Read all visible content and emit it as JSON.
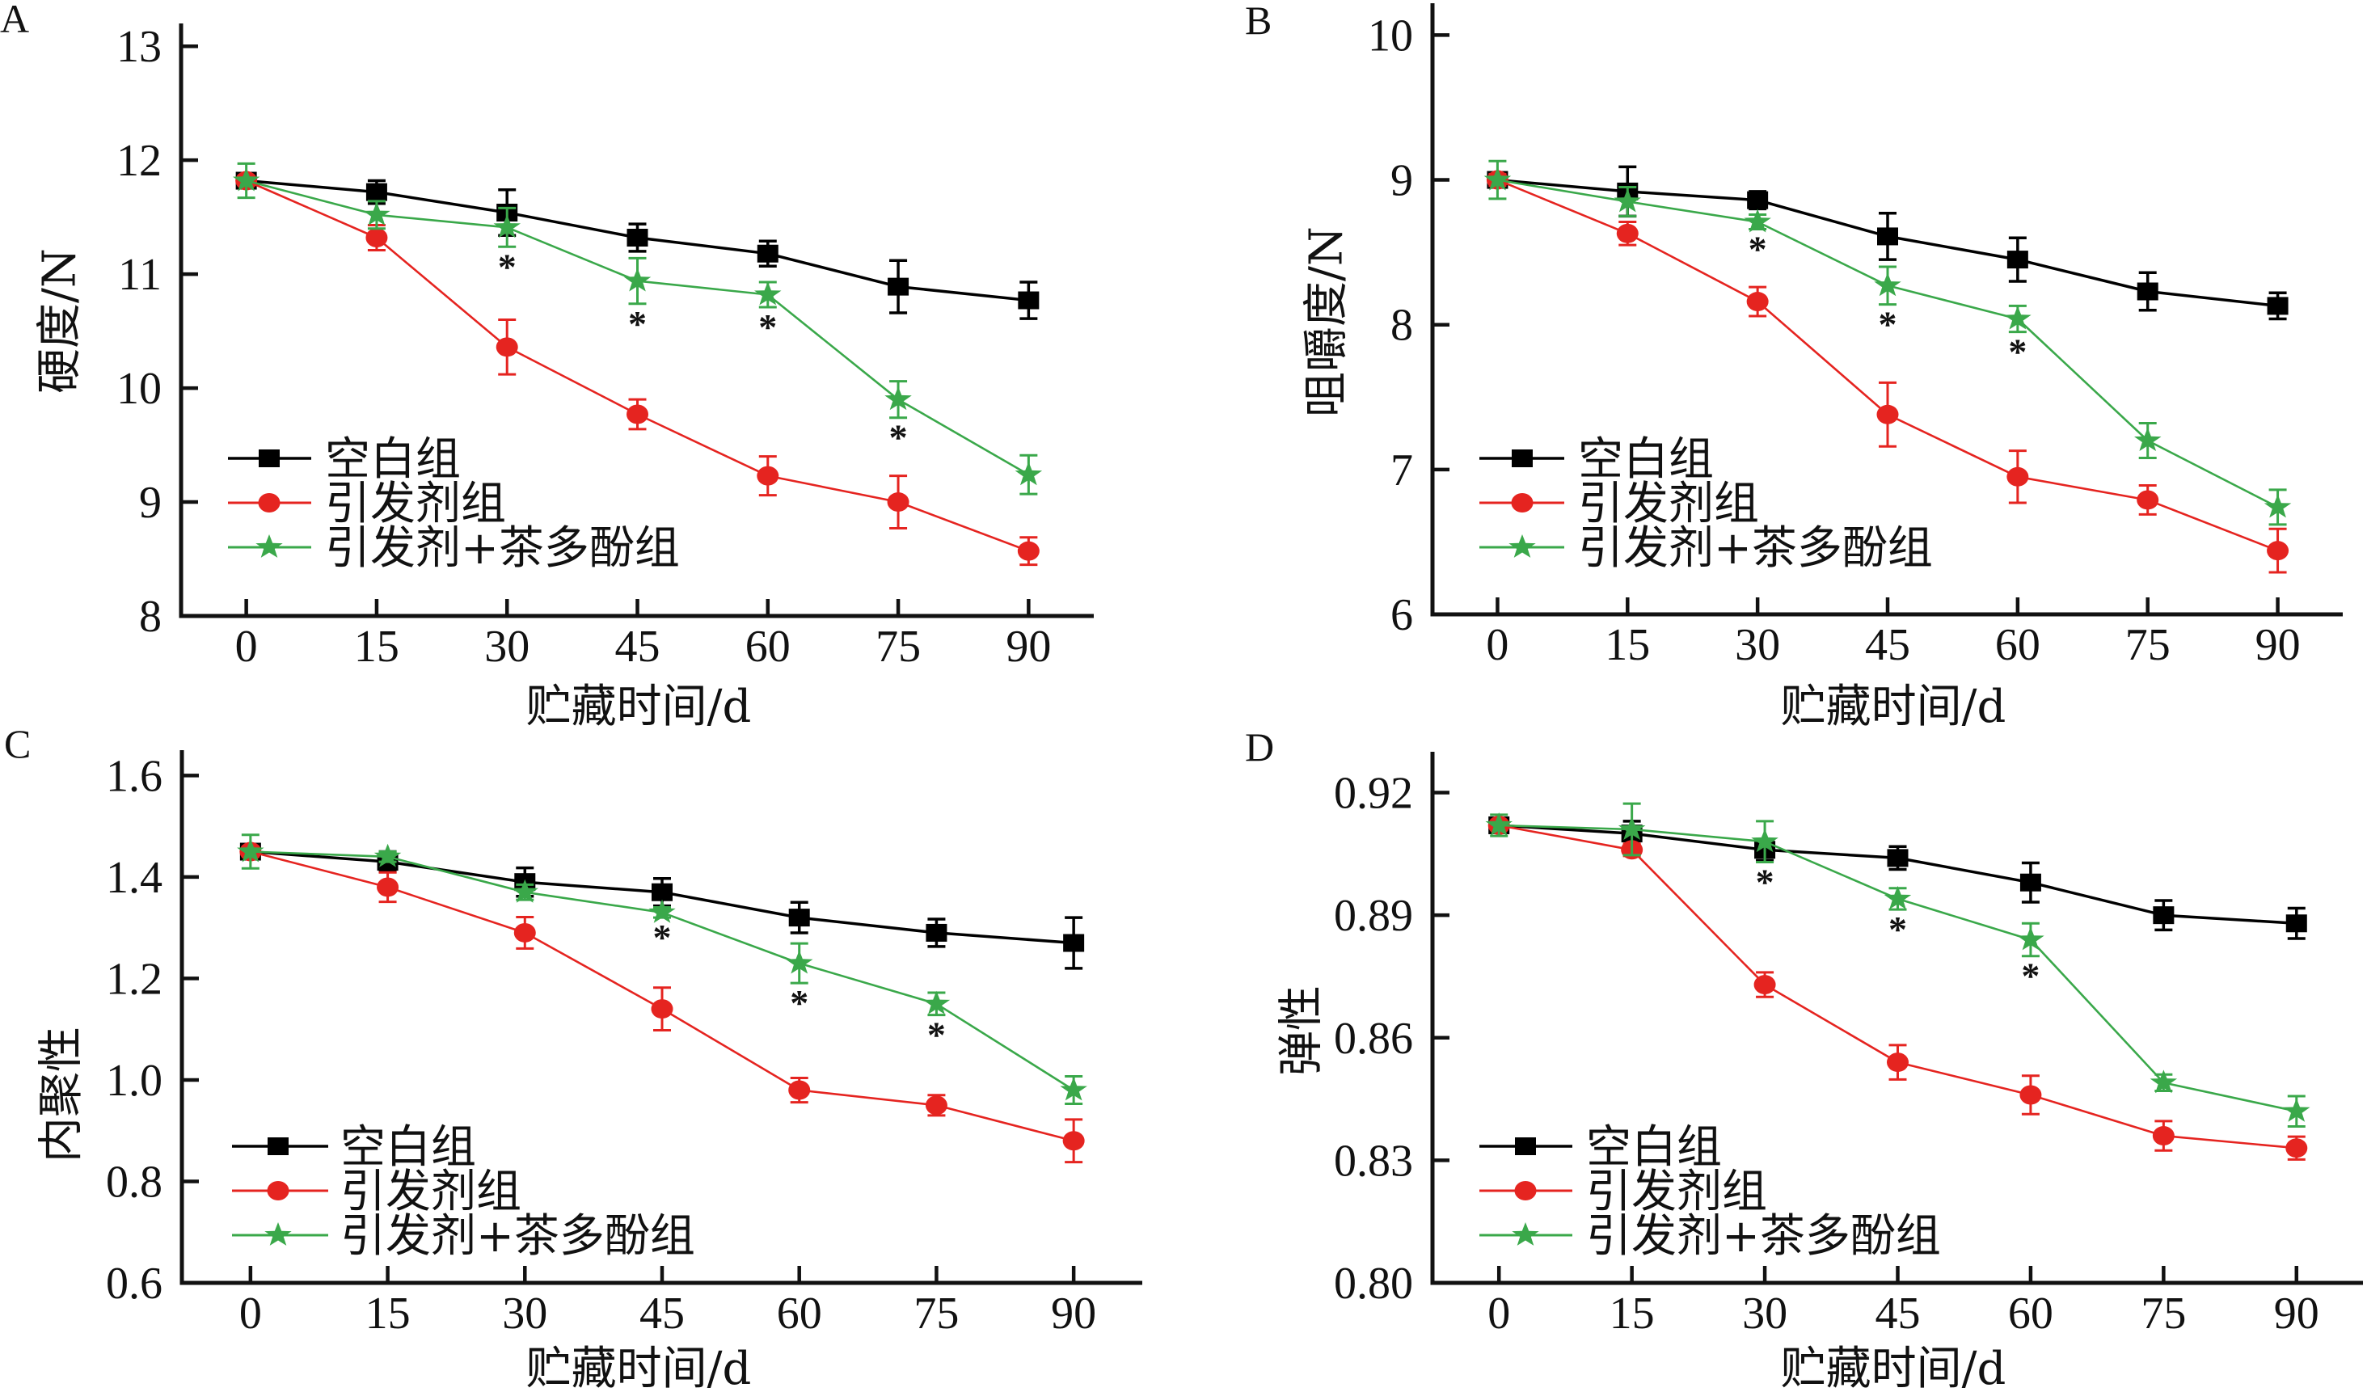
{
  "chart_data": [
    {
      "panel_label": "A",
      "type": "line",
      "title": "",
      "xlabel": "贮藏时间/d",
      "ylabel": "硬度/N",
      "x": [
        0,
        15,
        30,
        45,
        60,
        75,
        90
      ],
      "xticks": [
        "0",
        "15",
        "30",
        "45",
        "60",
        "75",
        "90"
      ],
      "xlim": [
        -7.5,
        97.5
      ],
      "ylim": [
        8,
        13.2
      ],
      "yticks": [
        8,
        9,
        10,
        11,
        12,
        13
      ],
      "ytick_labels": [
        "8",
        "9",
        "10",
        "11",
        "12",
        "13"
      ],
      "grid": false,
      "legend": {
        "placement": "lower-left"
      },
      "series": [
        {
          "name": "空白组",
          "color": "#000000",
          "marker": "square",
          "values": [
            11.82,
            11.72,
            11.54,
            11.32,
            11.18,
            10.89,
            10.77
          ],
          "error": [
            0.04,
            0.1,
            0.2,
            0.12,
            0.11,
            0.23,
            0.16
          ]
        },
        {
          "name": "引发剂组",
          "color": "#e52420",
          "marker": "circle",
          "values": [
            11.82,
            11.32,
            10.36,
            9.77,
            9.23,
            9.0,
            8.57
          ],
          "error": [
            0.04,
            0.11,
            0.24,
            0.13,
            0.17,
            0.23,
            0.12
          ]
        },
        {
          "name": "引发剂+茶多酚组",
          "color": "#3aa84a",
          "marker": "star",
          "values": [
            11.82,
            11.52,
            11.41,
            10.94,
            10.82,
            9.9,
            9.24
          ],
          "error": [
            0.15,
            0.12,
            0.17,
            0.2,
            0.11,
            0.16,
            0.17
          ]
        }
      ],
      "significance": {
        "marker": "*",
        "series": "引发剂+茶多酚组",
        "x": [
          30,
          45,
          60,
          75
        ]
      }
    },
    {
      "panel_label": "B",
      "type": "line",
      "title": "",
      "xlabel": "贮藏时间/d",
      "ylabel": "咀嚼度/N",
      "x": [
        0,
        15,
        30,
        45,
        60,
        75,
        90
      ],
      "xticks": [
        "0",
        "15",
        "30",
        "45",
        "60",
        "75",
        "90"
      ],
      "xlim": [
        -7.5,
        97.5
      ],
      "ylim": [
        6,
        10.22
      ],
      "yticks": [
        6,
        7,
        8,
        9,
        10
      ],
      "ytick_labels": [
        "6",
        "7",
        "8",
        "9",
        "10"
      ],
      "grid": false,
      "legend": {
        "placement": "lower-left"
      },
      "series": [
        {
          "name": "空白组",
          "color": "#000000",
          "marker": "square",
          "values": [
            9.0,
            8.92,
            8.86,
            8.61,
            8.45,
            8.23,
            8.13
          ],
          "error": [
            0.04,
            0.17,
            0.06,
            0.16,
            0.15,
            0.13,
            0.09
          ]
        },
        {
          "name": "引发剂组",
          "color": "#e52420",
          "marker": "circle",
          "values": [
            9.0,
            8.63,
            8.16,
            7.38,
            6.95,
            6.79,
            6.44
          ],
          "error": [
            0.04,
            0.08,
            0.1,
            0.22,
            0.18,
            0.1,
            0.15
          ]
        },
        {
          "name": "引发剂+茶多酚组",
          "color": "#3aa84a",
          "marker": "star",
          "values": [
            9.0,
            8.85,
            8.71,
            8.27,
            8.04,
            7.2,
            6.74
          ],
          "error": [
            0.13,
            0.1,
            0.05,
            0.13,
            0.09,
            0.12,
            0.12
          ]
        }
      ],
      "significance": {
        "marker": "*",
        "series": "引发剂+茶多酚组",
        "x": [
          30,
          45,
          60
        ]
      }
    },
    {
      "panel_label": "C",
      "type": "line",
      "title": "",
      "xlabel": "贮藏时间/d",
      "ylabel": "内聚性",
      "x": [
        0,
        15,
        30,
        45,
        60,
        75,
        90
      ],
      "xticks": [
        "0",
        "15",
        "30",
        "45",
        "60",
        "75",
        "90"
      ],
      "xlim": [
        -7.5,
        97.5
      ],
      "ylim": [
        0.6,
        1.65
      ],
      "yticks": [
        0.6,
        0.8,
        1.0,
        1.2,
        1.4,
        1.6
      ],
      "ytick_labels": [
        "0.6",
        "0.8",
        "1.0",
        "1.2",
        "1.4",
        "1.6"
      ],
      "grid": false,
      "legend": {
        "placement": "lower-left"
      },
      "series": [
        {
          "name": "空白组",
          "color": "#000000",
          "marker": "square",
          "values": [
            1.45,
            1.43,
            1.39,
            1.37,
            1.32,
            1.29,
            1.27
          ],
          "error": [
            0.01,
            0.02,
            0.028,
            0.027,
            0.03,
            0.027,
            0.05
          ]
        },
        {
          "name": "引发剂组",
          "color": "#e52420",
          "marker": "circle",
          "values": [
            1.45,
            1.38,
            1.29,
            1.14,
            0.98,
            0.95,
            0.88
          ],
          "error": [
            0.01,
            0.029,
            0.031,
            0.042,
            0.024,
            0.02,
            0.042
          ]
        },
        {
          "name": "引发剂+茶多酚组",
          "color": "#3aa84a",
          "marker": "star",
          "values": [
            1.45,
            1.44,
            1.37,
            1.33,
            1.23,
            1.15,
            0.98
          ],
          "error": [
            0.033,
            0.01,
            0.015,
            0.01,
            0.039,
            0.022,
            0.027
          ]
        }
      ],
      "significance": {
        "marker": "*",
        "series": "引发剂+茶多酚组",
        "x": [
          45,
          60,
          75
        ]
      }
    },
    {
      "panel_label": "D",
      "type": "line",
      "title": "",
      "xlabel": "贮藏时间/d",
      "ylabel": "弹性",
      "x": [
        0,
        15,
        30,
        45,
        60,
        75,
        90
      ],
      "xticks": [
        "0",
        "15",
        "30",
        "45",
        "60",
        "75",
        "90"
      ],
      "xlim": [
        -7.5,
        97.5
      ],
      "ylim": [
        0.8,
        0.93
      ],
      "yticks": [
        0.8,
        0.83,
        0.86,
        0.89,
        0.92
      ],
      "ytick_labels": [
        "0.80",
        "0.83",
        "0.86",
        "0.89",
        "0.92"
      ],
      "grid": false,
      "legend": {
        "placement": "lower-left"
      },
      "series": [
        {
          "name": "空白组",
          "color": "#000000",
          "marker": "square",
          "values": [
            0.912,
            0.91,
            0.906,
            0.904,
            0.898,
            0.89,
            0.888
          ],
          "error": [
            0.001,
            0.003,
            0.0026,
            0.0028,
            0.0048,
            0.0036,
            0.0037
          ]
        },
        {
          "name": "引发剂组",
          "color": "#e52420",
          "marker": "circle",
          "values": [
            0.912,
            0.906,
            0.873,
            0.854,
            0.846,
            0.836,
            0.833
          ],
          "error": [
            0.001,
            0.0015,
            0.003,
            0.0042,
            0.0047,
            0.0036,
            0.0028
          ]
        },
        {
          "name": "引发剂+茶多酚组",
          "color": "#3aa84a",
          "marker": "star",
          "values": [
            0.912,
            0.911,
            0.908,
            0.894,
            0.884,
            0.849,
            0.842
          ],
          "error": [
            0.0026,
            0.0063,
            0.005,
            0.0026,
            0.004,
            0.002,
            0.0037
          ]
        }
      ],
      "significance": {
        "marker": "*",
        "series": "引发剂+茶多酚组",
        "x": [
          30,
          45,
          60
        ]
      }
    }
  ]
}
